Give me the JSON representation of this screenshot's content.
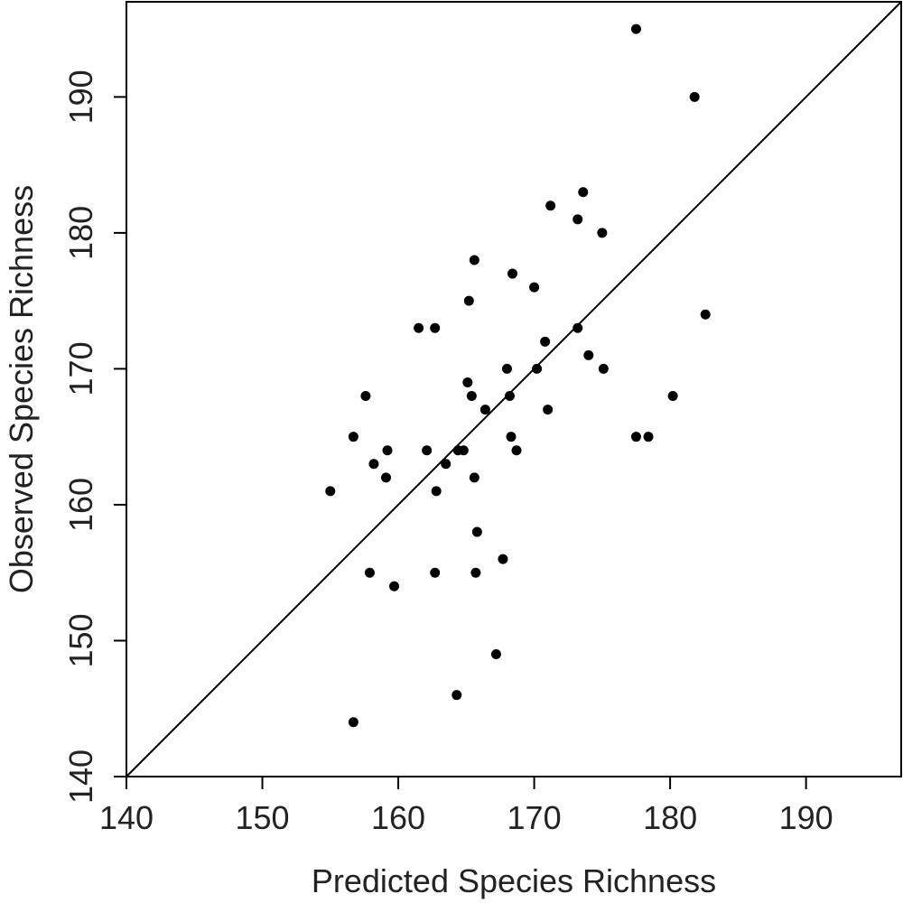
{
  "chart_data": {
    "type": "scatter",
    "title": "",
    "xlabel": "Predicted Species Richness",
    "ylabel": "Observed Species Richness",
    "xlim": [
      140,
      197
    ],
    "ylim": [
      140,
      197
    ],
    "x_ticks": [
      "140",
      "150",
      "160",
      "170",
      "180",
      "190"
    ],
    "y_ticks": [
      "140",
      "150",
      "160",
      "170",
      "180",
      "190"
    ],
    "grid": false,
    "reference_line": "y = x",
    "series": [
      {
        "points": [
          [
            177.5,
            195
          ],
          [
            181.8,
            190
          ],
          [
            173.6,
            183
          ],
          [
            171.2,
            182
          ],
          [
            173.2,
            181
          ],
          [
            175.0,
            180
          ],
          [
            165.6,
            178
          ],
          [
            168.4,
            177
          ],
          [
            170.0,
            176
          ],
          [
            165.2,
            175
          ],
          [
            182.6,
            174
          ],
          [
            161.5,
            173
          ],
          [
            162.7,
            173
          ],
          [
            173.2,
            173
          ],
          [
            170.8,
            172
          ],
          [
            174.0,
            171
          ],
          [
            168.0,
            170
          ],
          [
            170.2,
            170
          ],
          [
            175.1,
            170
          ],
          [
            165.1,
            169
          ],
          [
            157.6,
            168
          ],
          [
            165.4,
            168
          ],
          [
            168.2,
            168
          ],
          [
            180.2,
            168
          ],
          [
            166.4,
            167
          ],
          [
            171.0,
            167
          ],
          [
            156.7,
            165
          ],
          [
            168.3,
            165
          ],
          [
            177.5,
            165
          ],
          [
            178.4,
            165
          ],
          [
            159.2,
            164
          ],
          [
            162.1,
            164
          ],
          [
            164.4,
            164
          ],
          [
            164.8,
            164
          ],
          [
            168.7,
            164
          ],
          [
            158.2,
            163
          ],
          [
            163.5,
            163
          ],
          [
            159.1,
            162
          ],
          [
            165.6,
            162
          ],
          [
            155.0,
            161
          ],
          [
            162.8,
            161
          ],
          [
            165.8,
            158
          ],
          [
            167.7,
            156
          ],
          [
            157.9,
            155
          ],
          [
            162.7,
            155
          ],
          [
            165.7,
            155
          ],
          [
            159.7,
            154
          ],
          [
            167.2,
            149
          ],
          [
            164.3,
            146
          ],
          [
            156.7,
            144
          ]
        ]
      }
    ]
  }
}
